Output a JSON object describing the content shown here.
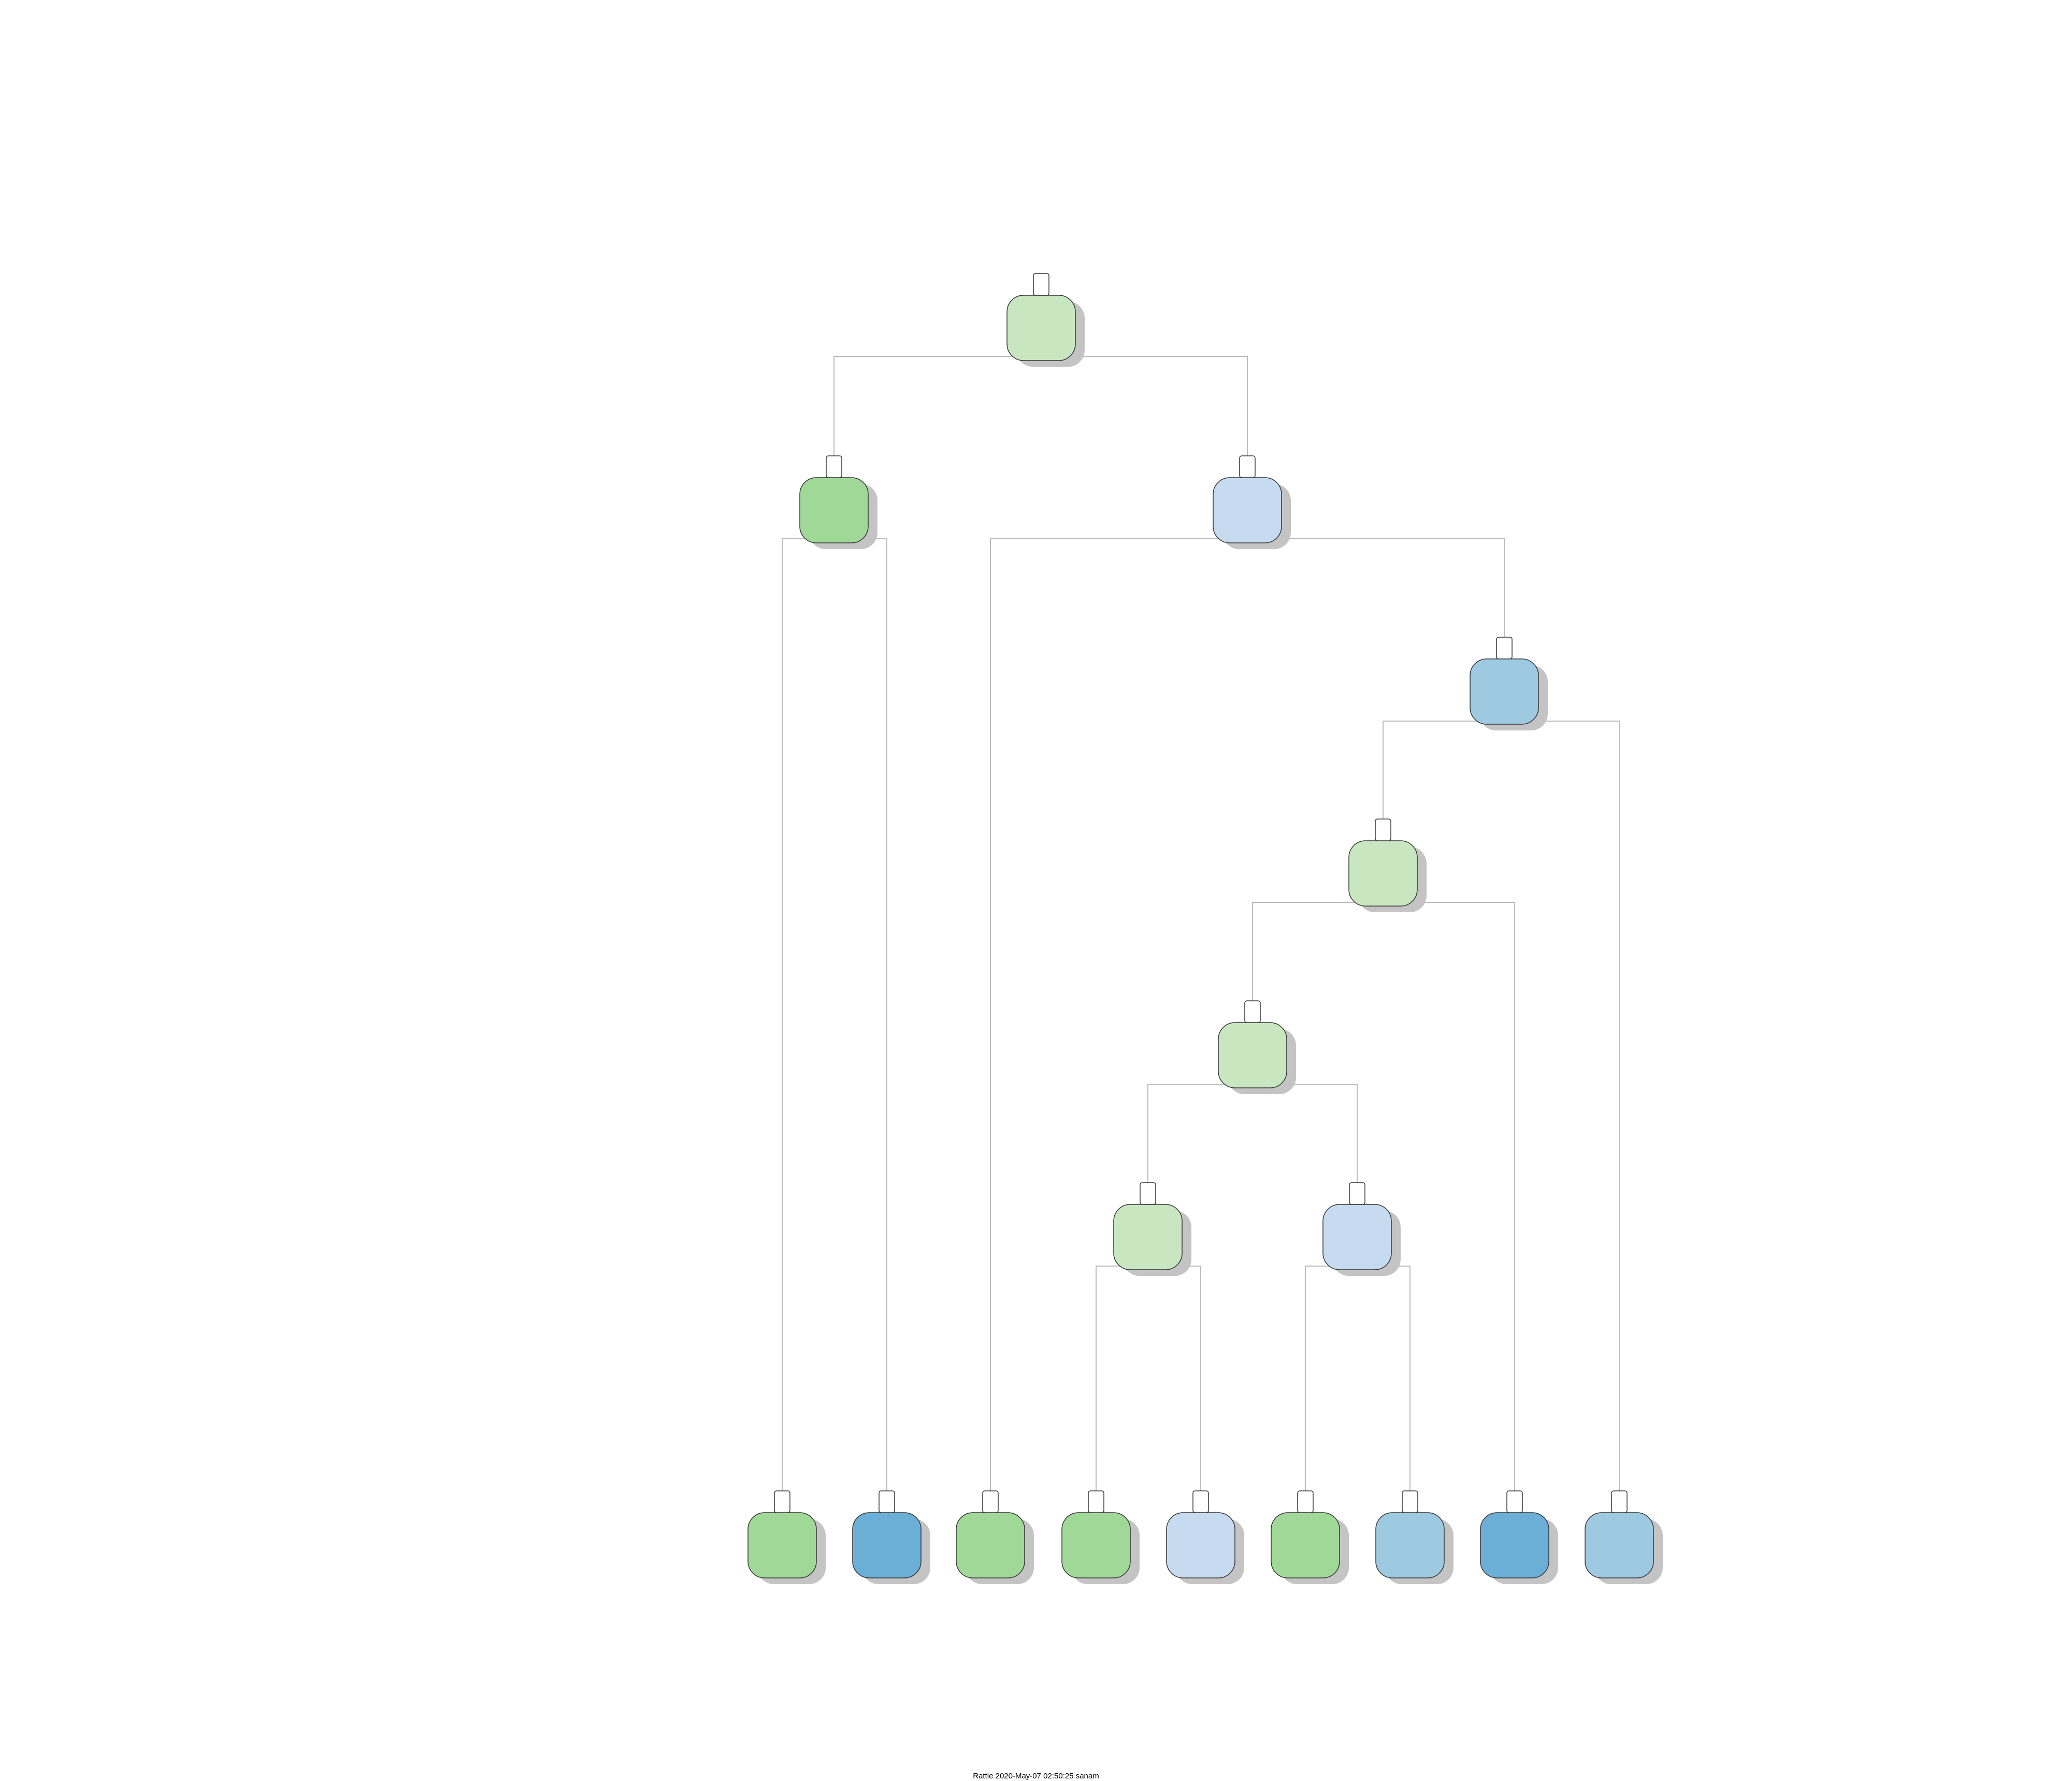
{
  "footer": "Rattle 2020-May-07 02:50:25 sanam",
  "colors": {
    "light_green": "#c8e7c0",
    "green": "#a0d898",
    "light_blue": "#c6dbef",
    "mid_blue": "#9ecae1",
    "blue": "#6baed6",
    "edge": "#bbbbbb",
    "shadow": "#c4c4c4",
    "border": "#333333"
  },
  "tree": {
    "nodes": [
      {
        "id": "n1",
        "fill": "light_green",
        "lines": [
          "",
          "",
          ""
        ],
        "number": ""
      },
      {
        "id": "n2",
        "fill": "green",
        "lines": [
          "",
          "",
          ""
        ],
        "number": ""
      },
      {
        "id": "n3",
        "fill": "light_blue",
        "lines": [
          "",
          "",
          ""
        ],
        "number": ""
      },
      {
        "id": "n7",
        "fill": "mid_blue",
        "lines": [
          "",
          "",
          ""
        ],
        "number": ""
      },
      {
        "id": "n14",
        "fill": "light_green",
        "lines": [
          "",
          "",
          ""
        ],
        "number": ""
      },
      {
        "id": "n28",
        "fill": "light_green",
        "lines": [
          "",
          "",
          ""
        ],
        "number": ""
      },
      {
        "id": "n56",
        "fill": "light_green",
        "lines": [
          "",
          "",
          ""
        ],
        "number": ""
      },
      {
        "id": "n57",
        "fill": "light_blue",
        "lines": [
          "",
          "",
          ""
        ],
        "number": ""
      },
      {
        "id": "n4",
        "fill": "green",
        "lines": [
          "",
          "",
          ""
        ],
        "number": ""
      },
      {
        "id": "n5",
        "fill": "blue",
        "lines": [
          "",
          "",
          ""
        ],
        "number": ""
      },
      {
        "id": "n6",
        "fill": "green",
        "lines": [
          "",
          "",
          ""
        ],
        "number": ""
      },
      {
        "id": "n112",
        "fill": "green",
        "lines": [
          "",
          "",
          ""
        ],
        "number": ""
      },
      {
        "id": "n113",
        "fill": "light_blue",
        "lines": [
          "",
          "",
          ""
        ],
        "number": ""
      },
      {
        "id": "n114",
        "fill": "green",
        "lines": [
          "",
          "",
          ""
        ],
        "number": ""
      },
      {
        "id": "n115",
        "fill": "mid_blue",
        "lines": [
          "",
          "",
          ""
        ],
        "number": ""
      },
      {
        "id": "n29",
        "fill": "blue",
        "lines": [
          "",
          "",
          ""
        ],
        "number": ""
      },
      {
        "id": "n15",
        "fill": "mid_blue",
        "lines": [
          "",
          "",
          ""
        ],
        "number": ""
      }
    ],
    "splits": [
      {
        "id": "n1",
        "text": ""
      },
      {
        "id": "n2",
        "text": ""
      },
      {
        "id": "n3",
        "text": ""
      },
      {
        "id": "n7",
        "text": ""
      },
      {
        "id": "n14",
        "text": ""
      },
      {
        "id": "n28",
        "text": ""
      },
      {
        "id": "n56",
        "text": ""
      },
      {
        "id": "n57",
        "text": ""
      }
    ]
  }
}
